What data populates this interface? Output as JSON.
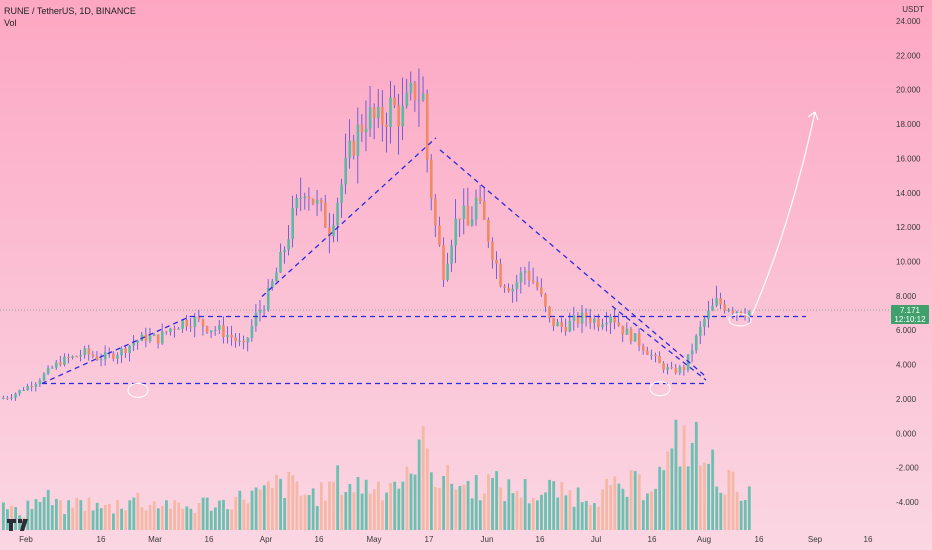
{
  "header": {
    "symbol": "RUNE / TetherUS, 1D, BINANCE",
    "volume_label": "Vol",
    "unit": "USDT"
  },
  "last_price": {
    "value": "7.171",
    "countdown": "12:10:12"
  },
  "colors": {
    "up": "#5fb7a6",
    "down": "#f08a66",
    "wick_up": "#3a3ad8",
    "wick_down": "#3a3ad8",
    "vol_up": "#6cc0b1",
    "vol_down": "#f5b8a6",
    "trendline": "#2a2ae0",
    "arrow": "#ffffff",
    "badge": "#3fa06b"
  },
  "chart_data": {
    "type": "candlestick",
    "y_axis_ticks": [
      "24.000",
      "22.000",
      "20.000",
      "18.000",
      "16.000",
      "14.000",
      "12.000",
      "10.000",
      "8.000",
      "6.000",
      "4.000",
      "2.000",
      "0.000",
      "-2.000",
      "-4.000"
    ],
    "y_axis_values": [
      24,
      22,
      20,
      18,
      16,
      14,
      12,
      10,
      8,
      6,
      4,
      2,
      0,
      -2,
      -4
    ],
    "x_axis_ticks": [
      "Feb",
      "16",
      "Mar",
      "16",
      "Apr",
      "16",
      "May",
      "17",
      "Jun",
      "16",
      "Jul",
      "16",
      "Aug",
      "16",
      "Sep",
      "16"
    ],
    "y_range": [
      -6,
      25
    ],
    "price_path": [
      [
        0,
        2.0
      ],
      [
        6,
        2.2
      ],
      [
        12,
        2.6
      ],
      [
        18,
        3.0
      ],
      [
        24,
        3.6
      ],
      [
        30,
        4.2
      ],
      [
        36,
        4.4
      ],
      [
        42,
        4.7
      ],
      [
        48,
        4.4
      ],
      [
        54,
        4.5
      ],
      [
        60,
        4.8
      ],
      [
        66,
        5.3
      ],
      [
        72,
        5.6
      ],
      [
        78,
        5.5
      ],
      [
        84,
        6.1
      ],
      [
        90,
        6.5
      ],
      [
        96,
        6.6
      ],
      [
        102,
        6.2
      ],
      [
        108,
        6.0
      ],
      [
        114,
        5.6
      ],
      [
        120,
        5.0
      ],
      [
        126,
        6.8
      ],
      [
        132,
        8.0
      ],
      [
        138,
        10.0
      ],
      [
        144,
        12.5
      ],
      [
        150,
        14.5
      ],
      [
        156,
        13.2
      ],
      [
        162,
        12.0
      ],
      [
        168,
        14.5
      ],
      [
        174,
        17.0
      ],
      [
        180,
        18.5
      ],
      [
        186,
        18.0
      ],
      [
        192,
        19.0
      ],
      [
        198,
        18.5
      ],
      [
        204,
        20.0
      ],
      [
        208,
        19.5
      ],
      [
        210,
        16.0
      ],
      [
        214,
        12.0
      ],
      [
        218,
        9.5
      ],
      [
        222,
        11.5
      ],
      [
        226,
        13.0
      ],
      [
        230,
        12.0
      ],
      [
        234,
        13.5
      ],
      [
        240,
        11.5
      ],
      [
        246,
        9.0
      ],
      [
        252,
        8.5
      ],
      [
        258,
        9.5
      ],
      [
        264,
        8.5
      ],
      [
        270,
        6.5
      ],
      [
        276,
        6.2
      ],
      [
        282,
        6.5
      ],
      [
        288,
        6.8
      ],
      [
        294,
        6.5
      ],
      [
        300,
        7.0
      ],
      [
        306,
        6.0
      ],
      [
        312,
        5.5
      ],
      [
        318,
        4.8
      ],
      [
        324,
        4.0
      ],
      [
        330,
        3.6
      ],
      [
        336,
        3.8
      ],
      [
        342,
        5.5
      ],
      [
        346,
        6.6
      ],
      [
        352,
        7.6
      ],
      [
        358,
        7.4
      ],
      [
        362,
        7.2
      ],
      [
        368,
        7.1
      ]
    ],
    "volume_profile": [
      0.25,
      0.2,
      0.3,
      0.35,
      0.3,
      0.25,
      0.3,
      0.3,
      0.25,
      0.25,
      0.3,
      0.35,
      0.3,
      0.3,
      0.3,
      0.25,
      0.25,
      0.3,
      0.3,
      0.3,
      0.35,
      0.4,
      0.4,
      0.45,
      0.5,
      0.5,
      0.4,
      0.4,
      0.45,
      0.55,
      0.5,
      0.5,
      0.5,
      0.5,
      0.55,
      0.55,
      0.9,
      0.9,
      0.6,
      0.55,
      0.5,
      0.5,
      0.55,
      0.5,
      0.45,
      0.45,
      0.4,
      0.4,
      0.45,
      0.4,
      0.4,
      0.4,
      0.4,
      0.45,
      0.45,
      0.5,
      0.5,
      0.6,
      0.75,
      1.0,
      0.95,
      0.8,
      0.7,
      0.55,
      0.5,
      0.4
    ],
    "annotations": {
      "lower_support": 2.9,
      "mid_resistance": 6.8,
      "arrow_target": 18.7,
      "rising_trend_top": 17.2,
      "falling_trend_start": 16.5
    }
  }
}
